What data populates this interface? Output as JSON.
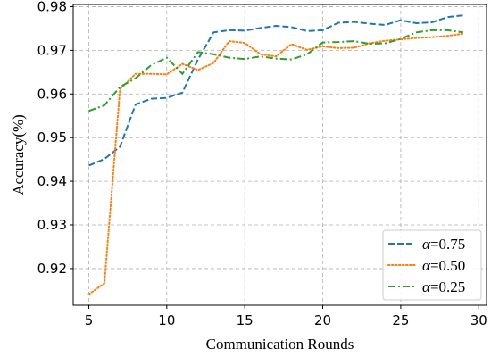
{
  "chart_data": {
    "type": "line",
    "xlabel": "Communication Rounds",
    "ylabel": "Accuracy(%)",
    "xlim": [
      4,
      30.5
    ],
    "ylim": [
      0.9116,
      0.9805
    ],
    "xticks": [
      5,
      10,
      15,
      20,
      25,
      30
    ],
    "yticks": [
      0.92,
      0.93,
      0.94,
      0.95,
      0.96,
      0.97,
      0.98
    ],
    "grid": true,
    "legend_position": "lower-right",
    "x": [
      5,
      6,
      7,
      8,
      9,
      10,
      11,
      12,
      13,
      14,
      15,
      16,
      17,
      18,
      19,
      20,
      21,
      22,
      23,
      24,
      25,
      26,
      27,
      28,
      29
    ],
    "series": [
      {
        "name": "α=0.75",
        "legend_symbol": "α",
        "legend_value": "=0.75",
        "color": "#1f77b4",
        "dash": "dashed",
        "values": [
          0.9436,
          0.9451,
          0.9479,
          0.9576,
          0.9589,
          0.9591,
          0.9603,
          0.9679,
          0.9741,
          0.9746,
          0.9745,
          0.9751,
          0.9756,
          0.9753,
          0.9744,
          0.9746,
          0.9763,
          0.9765,
          0.9761,
          0.9758,
          0.9769,
          0.9762,
          0.9764,
          0.9776,
          0.978
        ]
      },
      {
        "name": "α=0.50",
        "legend_symbol": "α",
        "legend_value": "=0.50",
        "color": "#ff7f0e",
        "dash": "dotted",
        "values": [
          0.9141,
          0.9166,
          0.9611,
          0.9646,
          0.9646,
          0.9645,
          0.9669,
          0.9655,
          0.9671,
          0.9721,
          0.9717,
          0.9691,
          0.9686,
          0.9714,
          0.9701,
          0.9709,
          0.9705,
          0.9706,
          0.9716,
          0.9722,
          0.9725,
          0.9728,
          0.973,
          0.9733,
          0.9738
        ]
      },
      {
        "name": "α=0.25",
        "legend_symbol": "α",
        "legend_value": "=0.25",
        "color": "#2ca02c",
        "dash": "dashdot",
        "values": [
          0.9561,
          0.9574,
          0.9616,
          0.9636,
          0.9666,
          0.9683,
          0.9646,
          0.9696,
          0.9691,
          0.9683,
          0.968,
          0.9686,
          0.9681,
          0.9679,
          0.9691,
          0.9718,
          0.9719,
          0.9721,
          0.9715,
          0.9716,
          0.9726,
          0.9741,
          0.9746,
          0.9746,
          0.9741
        ]
      }
    ]
  }
}
